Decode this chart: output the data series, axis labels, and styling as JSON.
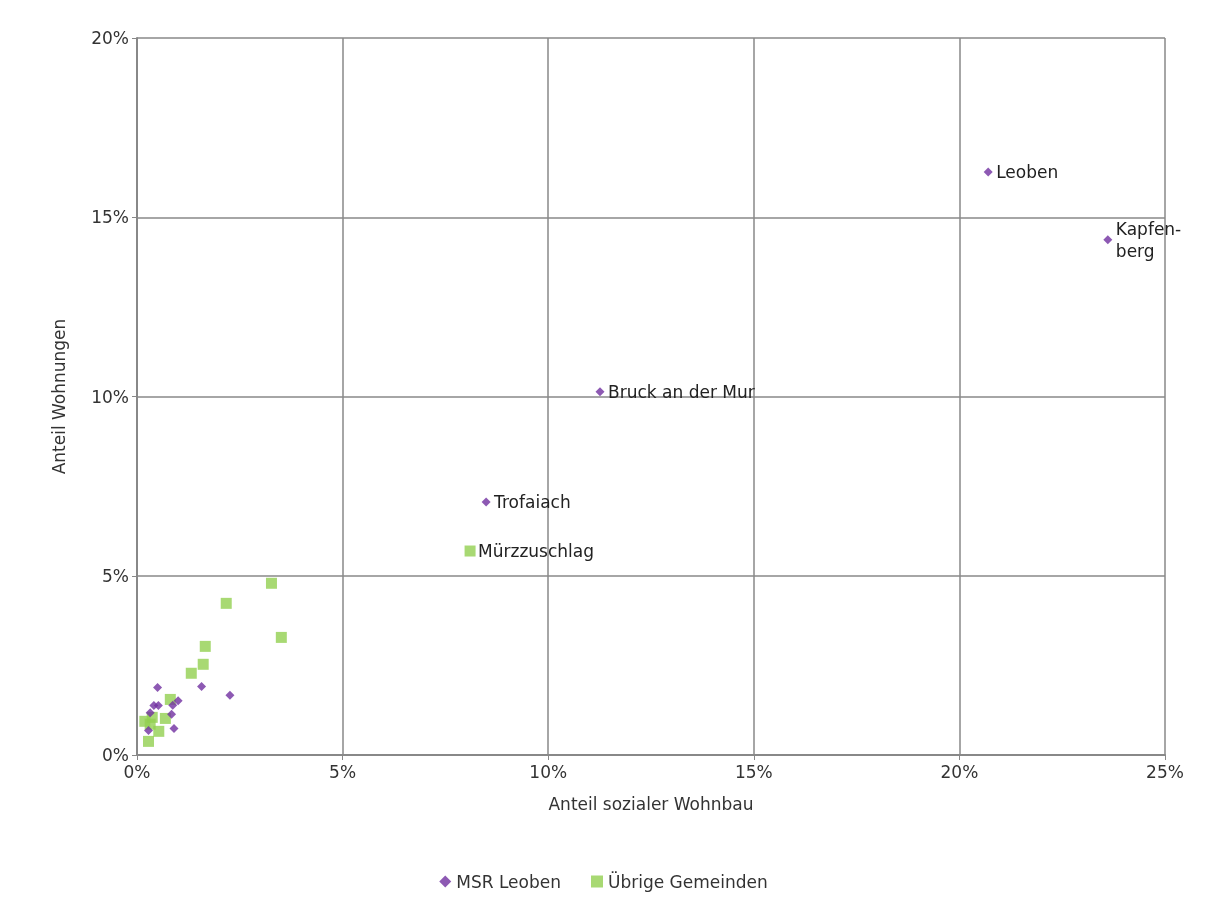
{
  "chart_data": {
    "type": "scatter",
    "xlabel": "Anteil sozialer Wohnbau",
    "ylabel": "Anteil Wohnungen",
    "xlim": [
      0,
      25
    ],
    "xticks": [
      {
        "value": 0,
        "label": "0%"
      },
      {
        "value": 5,
        "label": "5%"
      },
      {
        "value": 10,
        "label": "10%"
      },
      {
        "value": 15,
        "label": "15%"
      },
      {
        "value": 20,
        "label": "20%"
      },
      {
        "value": 25,
        "label": "25%"
      }
    ],
    "ylim": [
      0,
      20
    ],
    "yticks": [
      {
        "value": 0,
        "label": "0%"
      },
      {
        "value": 5,
        "label": "5%"
      },
      {
        "value": 10,
        "label": "10%"
      },
      {
        "value": 15,
        "label": "15%"
      },
      {
        "value": 20,
        "label": "20%"
      }
    ],
    "grid": true,
    "legend": "bottom",
    "series": [
      {
        "name": "MSR Leoben",
        "color": "#7030a0",
        "marker": "diamond",
        "x": [
          20.7,
          23.61,
          11.26,
          8.49,
          0.5,
          1.57,
          2.26,
          0.41,
          0.52,
          1.0,
          0.87,
          0.84,
          0.32,
          0.9,
          0.28
        ],
        "values": [
          16.26,
          14.37,
          10.13,
          7.06,
          1.88,
          1.91,
          1.67,
          1.38,
          1.38,
          1.51,
          1.39,
          1.14,
          1.18,
          0.74,
          0.68
        ]
      },
      {
        "name": "Übrige Gemeinden",
        "color": "#92d050",
        "marker": "square",
        "x": [
          8.1,
          3.27,
          2.17,
          3.51,
          1.66,
          1.61,
          1.32,
          0.81,
          0.69,
          0.37,
          0.19,
          0.32,
          0.53,
          0.28
        ],
        "values": [
          5.69,
          4.79,
          4.23,
          3.28,
          3.03,
          2.53,
          2.28,
          1.55,
          1.02,
          1.05,
          0.94,
          0.86,
          0.66,
          0.38
        ]
      }
    ],
    "annotations": [
      {
        "text": "Leoben",
        "x": 20.7,
        "y": 16.26
      },
      {
        "text": "Kapfen-\nberg",
        "x": 23.61,
        "y": 14.37
      },
      {
        "text": "Bruck an der Mur",
        "x": 11.26,
        "y": 10.13
      },
      {
        "text": "Trofaiach",
        "x": 8.49,
        "y": 7.06
      },
      {
        "text": "Mürzzuschlag",
        "x": 8.1,
        "y": 5.69
      }
    ]
  }
}
